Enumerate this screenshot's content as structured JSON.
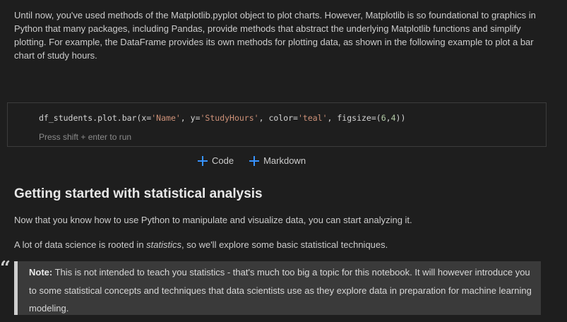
{
  "intro_paragraph": "Until now, you've used methods of the Matplotlib.pyplot object to plot charts. However, Matplotlib is so foundational to graphics in Python that many packages, including Pandas, provide methods that abstract the underlying Matplotlib functions and simplify plotting. For example, the DataFrame provides its own methods for plotting data, as shown in the following example to plot a bar chart of study hours.",
  "code_cell": {
    "code_prefix": "df_students.plot.bar(x=",
    "arg_x": "'Name'",
    "sep1": ", y=",
    "arg_y": "'StudyHours'",
    "sep2": ", color=",
    "arg_color": "'teal'",
    "sep3": ", figsize=(",
    "arg_w": "6",
    "comma": ",",
    "arg_h": "4",
    "code_suffix": "))",
    "run_hint": "Press shift + enter to run"
  },
  "add_cell": {
    "code_label": "Code",
    "markdown_label": "Markdown"
  },
  "section": {
    "heading": "Getting started with statistical analysis",
    "para1": "Now that you know how to use Python to manipulate and visualize data, you can start analyzing it.",
    "para2_before": "A lot of data science is rooted in ",
    "para2_em": "statistics",
    "para2_after": ", so we'll explore some basic statistical techniques."
  },
  "note": {
    "quote_glyph": "“",
    "label": "Note:",
    "text": " This is not intended to teach you statistics - that's much too big a topic for this notebook. It will however introduce you to some statistical concepts and techniques that data scientists use as they explore data in preparation for machine learning modeling."
  }
}
